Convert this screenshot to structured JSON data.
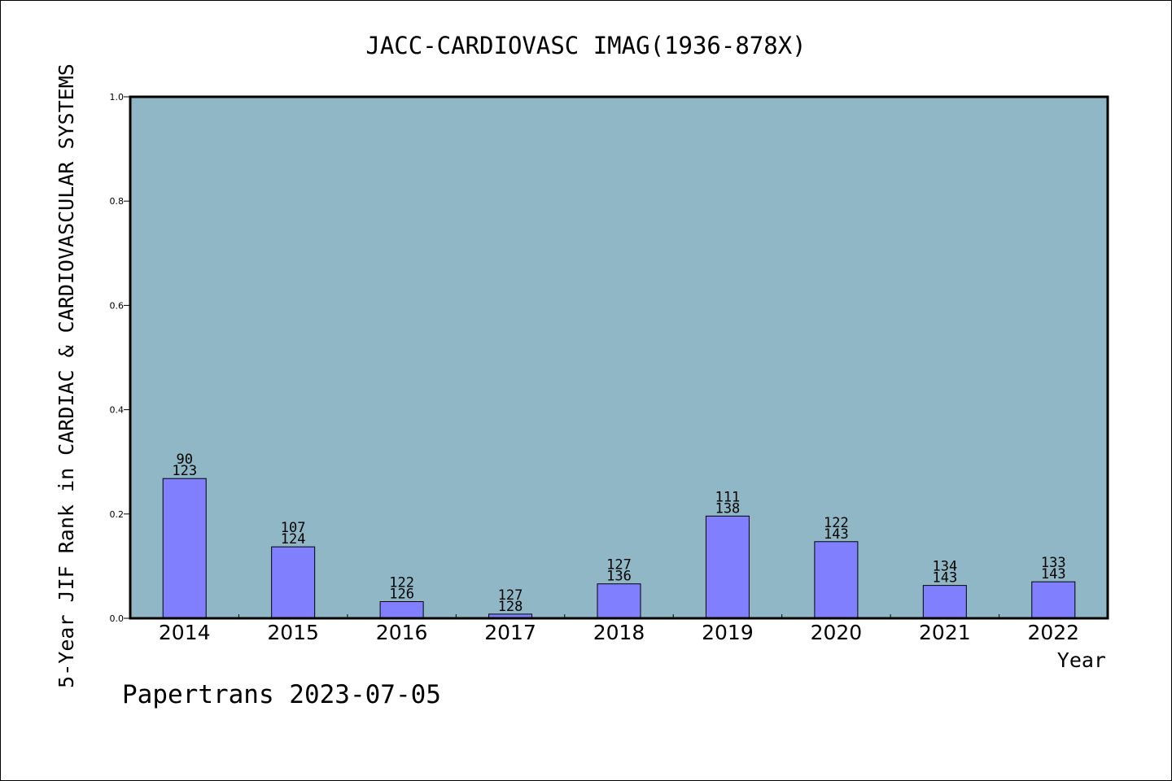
{
  "chart_data": {
    "type": "bar",
    "title": "JACC-CARDIOVASC IMAG(1936-878X)",
    "xlabel": "Year",
    "ylabel": "5-Year JIF Rank in CARDIAC & CARDIOVASCULAR SYSTEMS",
    "ylim": [
      0,
      1.0
    ],
    "yticks": [
      "0.0",
      "0.2",
      "0.4",
      "0.6",
      "0.8",
      "1.0"
    ],
    "categories": [
      "2014",
      "2015",
      "2016",
      "2017",
      "2018",
      "2019",
      "2020",
      "2021",
      "2022"
    ],
    "values": [
      0.268,
      0.137,
      0.032,
      0.008,
      0.066,
      0.196,
      0.147,
      0.063,
      0.07
    ],
    "rank": [
      90,
      107,
      122,
      127,
      127,
      111,
      122,
      134,
      133
    ],
    "total": [
      123,
      124,
      126,
      128,
      136,
      138,
      143,
      143,
      143
    ],
    "bar_color": "#8080ff",
    "plot_background": "#8fb7c5",
    "grid": false,
    "legend": "none"
  },
  "footer": {
    "watermark": "Papertrans 2023-07-05"
  }
}
